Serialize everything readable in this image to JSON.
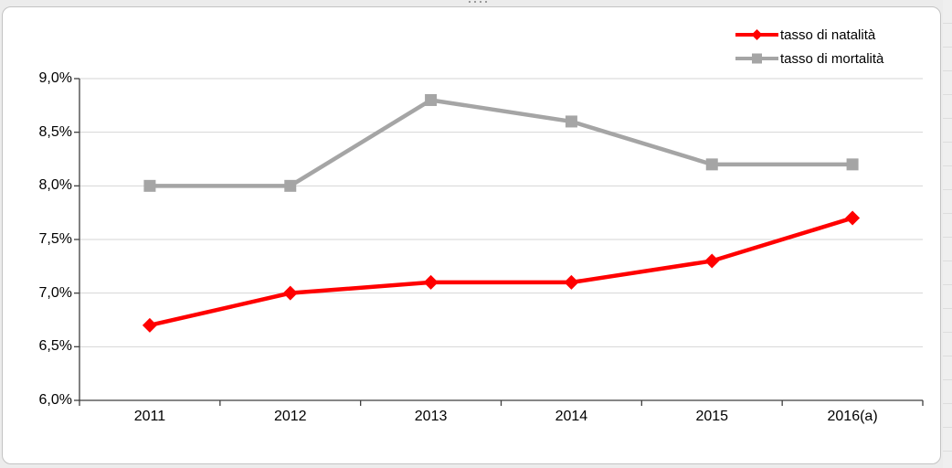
{
  "chart_data": {
    "type": "line",
    "title": "",
    "xlabel": "",
    "ylabel": "",
    "categories": [
      "2011",
      "2012",
      "2013",
      "2014",
      "2015",
      "2016(a)"
    ],
    "series": [
      {
        "name": "tasso di natalità",
        "color": "#ff0000",
        "marker": "diamond",
        "values": [
          6.7,
          7.0,
          7.1,
          7.1,
          7.3,
          7.7
        ]
      },
      {
        "name": "tasso di mortalità",
        "color": "#a5a5a5",
        "marker": "square",
        "values": [
          8.0,
          8.0,
          8.8,
          8.6,
          8.2,
          8.2
        ]
      }
    ],
    "ylim": [
      6.0,
      9.0
    ],
    "y_step": 0.5,
    "y_tick_labels": [
      "6,0%",
      "6,5%",
      "7,0%",
      "7,5%",
      "8,0%",
      "8,5%",
      "9,0%"
    ],
    "grid": true,
    "legend_position": "top-right"
  },
  "colors": {
    "gridline": "#d6d6d6",
    "axis": "#3f3f3f",
    "tick_text": "#000000",
    "chart_border": "#c3c3c3",
    "worksheet_bg": "#ececec"
  }
}
